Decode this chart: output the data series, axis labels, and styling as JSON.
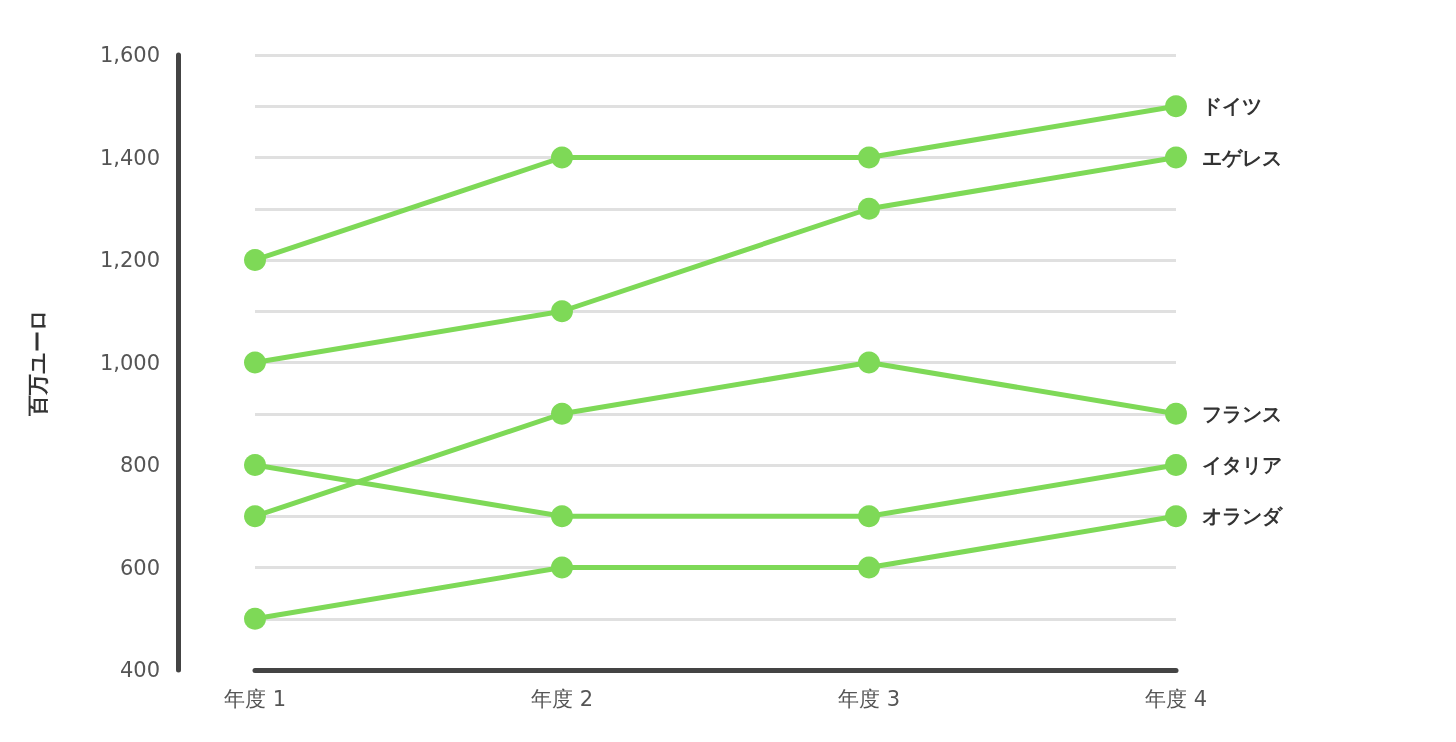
{
  "chart_data": {
    "type": "line",
    "ylabel": "百万ユーロ",
    "categories": [
      "年度 1",
      "年度 2",
      "年度 3",
      "年度 4"
    ],
    "series": [
      {
        "name": "ドイツ",
        "color": "#7ed957",
        "values": [
          1200,
          1400,
          1400,
          1500
        ]
      },
      {
        "name": "エゲレス",
        "color": "#7ed957",
        "values": [
          1000,
          1100,
          1300,
          1400
        ]
      },
      {
        "name": "フランス",
        "color": "#7ed957",
        "values": [
          700,
          900,
          1000,
          900
        ]
      },
      {
        "name": "イタリア",
        "color": "#7ed957",
        "values": [
          800,
          700,
          700,
          800
        ]
      },
      {
        "name": "オランダ",
        "color": "#7ed957",
        "values": [
          500,
          600,
          600,
          700
        ]
      }
    ],
    "ylim": [
      400,
      1600
    ],
    "yticks": [
      400,
      {
        "value": 500,
        "label": null
      },
      600,
      {
        "value": 700,
        "label": null
      },
      800,
      {
        "value": 900,
        "label": null
      },
      {
        "value": 1000,
        "label": "1,000"
      },
      {
        "value": 1100,
        "label": null
      },
      {
        "value": 1200,
        "label": "1,200"
      },
      {
        "value": 1300,
        "label": null
      },
      {
        "value": 1400,
        "label": "1,400"
      },
      {
        "value": 1500,
        "label": null
      },
      {
        "value": 1600,
        "label": "1,600"
      }
    ],
    "grid": "y",
    "legend": false,
    "marker": "circle",
    "line_style": "solid"
  }
}
